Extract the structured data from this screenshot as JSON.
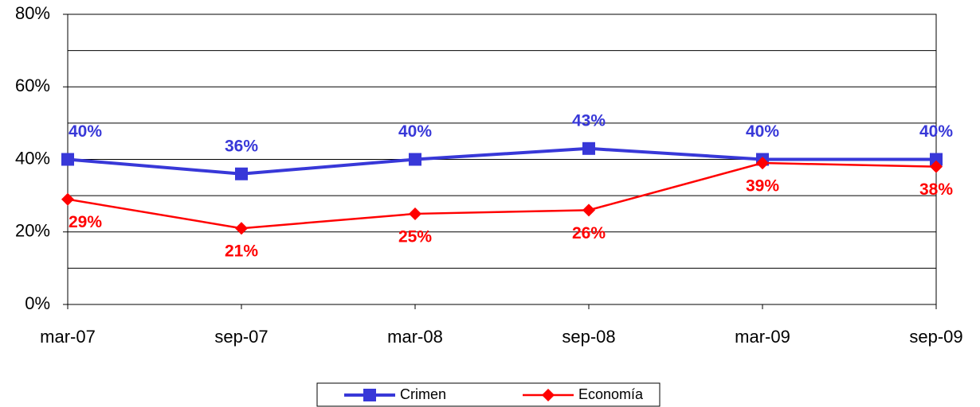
{
  "chart_data": {
    "type": "line",
    "categories": [
      "mar-07",
      "sep-07",
      "mar-08",
      "sep-08",
      "mar-09",
      "sep-09"
    ],
    "series": [
      {
        "name": "Crimen",
        "color": "#3838d8",
        "marker": "square",
        "values": [
          40,
          36,
          40,
          43,
          40,
          40
        ],
        "value_labels": [
          "40%",
          "36%",
          "40%",
          "43%",
          "40%",
          "40%"
        ]
      },
      {
        "name": "Economía",
        "color": "#ff0000",
        "marker": "diamond",
        "values": [
          29,
          21,
          25,
          26,
          39,
          38
        ],
        "value_labels": [
          "29%",
          "21%",
          "25%",
          "26%",
          "39%",
          "38%"
        ]
      }
    ],
    "ylim": [
      0,
      80
    ],
    "yticks": [
      {
        "value": 0,
        "label": "0%"
      },
      {
        "value": 20,
        "label": "20%"
      },
      {
        "value": 40,
        "label": "40%"
      },
      {
        "value": 60,
        "label": "60%"
      },
      {
        "value": 80,
        "label": "80%"
      }
    ],
    "minor_grid": [
      10,
      30,
      50,
      70
    ],
    "grid": true,
    "legend": "bottom"
  }
}
